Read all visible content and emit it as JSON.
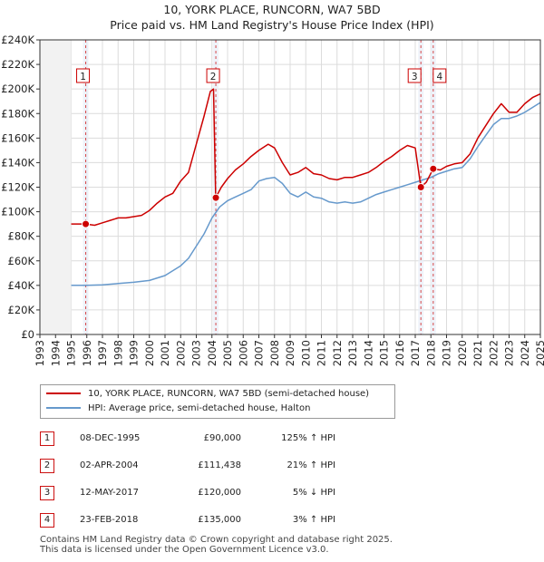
{
  "chart_data": {
    "type": "line",
    "title": "10, YORK PLACE, RUNCORN, WA7 5BD",
    "subtitle": "Price paid vs. HM Land Registry's House Price Index (HPI)",
    "xlim": [
      1993,
      2025
    ],
    "ylim": [
      0,
      240000
    ],
    "x_ticks": [
      "1993",
      "1994",
      "1995",
      "1996",
      "1997",
      "1998",
      "1999",
      "2000",
      "2001",
      "2002",
      "2003",
      "2004",
      "2005",
      "2006",
      "2007",
      "2008",
      "2009",
      "2010",
      "2011",
      "2012",
      "2013",
      "2014",
      "2015",
      "2016",
      "2017",
      "2018",
      "2019",
      "2020",
      "2021",
      "2022",
      "2023",
      "2024",
      "2025"
    ],
    "y_ticks": [
      {
        "value": 0,
        "label": "£0"
      },
      {
        "value": 20000,
        "label": "£20K"
      },
      {
        "value": 40000,
        "label": "£40K"
      },
      {
        "value": 60000,
        "label": "£60K"
      },
      {
        "value": 80000,
        "label": "£80K"
      },
      {
        "value": 100000,
        "label": "£100K"
      },
      {
        "value": 120000,
        "label": "£120K"
      },
      {
        "value": 140000,
        "label": "£140K"
      },
      {
        "value": 160000,
        "label": "£160K"
      },
      {
        "value": 180000,
        "label": "£180K"
      },
      {
        "value": 200000,
        "label": "£200K"
      },
      {
        "value": 220000,
        "label": "£220K"
      },
      {
        "value": 240000,
        "label": "£240K"
      }
    ],
    "grid": true,
    "data_start_year": 1995,
    "series": [
      {
        "name": "10, YORK PLACE, RUNCORN, WA7 5BD (semi-detached house)",
        "color": "#cc0000",
        "points": [
          [
            1995,
            90000
          ],
          [
            1995.9,
            90000
          ],
          [
            1996.5,
            89000
          ],
          [
            1997,
            91000
          ],
          [
            1997.5,
            93000
          ],
          [
            1998,
            95000
          ],
          [
            1998.5,
            95000
          ],
          [
            1999,
            96000
          ],
          [
            1999.5,
            97000
          ],
          [
            2000,
            101000
          ],
          [
            2000.5,
            107000
          ],
          [
            2001,
            112000
          ],
          [
            2001.5,
            115000
          ],
          [
            2002,
            125000
          ],
          [
            2002.5,
            132000
          ],
          [
            2003,
            155000
          ],
          [
            2003.5,
            178000
          ],
          [
            2003.9,
            198000
          ],
          [
            2004.1,
            200000
          ],
          [
            2004.24,
            111438
          ],
          [
            2004.6,
            120000
          ],
          [
            2005,
            127000
          ],
          [
            2005.5,
            134000
          ],
          [
            2006,
            139000
          ],
          [
            2006.5,
            145000
          ],
          [
            2007,
            150000
          ],
          [
            2007.6,
            155000
          ],
          [
            2008,
            152000
          ],
          [
            2008.5,
            140000
          ],
          [
            2009,
            130000
          ],
          [
            2009.5,
            132000
          ],
          [
            2010,
            136000
          ],
          [
            2010.5,
            131000
          ],
          [
            2011,
            130000
          ],
          [
            2011.5,
            127000
          ],
          [
            2012,
            126000
          ],
          [
            2012.5,
            128000
          ],
          [
            2013,
            128000
          ],
          [
            2013.5,
            130000
          ],
          [
            2014,
            132000
          ],
          [
            2014.5,
            136000
          ],
          [
            2015,
            141000
          ],
          [
            2015.5,
            145000
          ],
          [
            2016,
            150000
          ],
          [
            2016.5,
            154000
          ],
          [
            2017,
            152000
          ],
          [
            2017.36,
            120000
          ],
          [
            2017.7,
            124000
          ],
          [
            2018.15,
            135000
          ],
          [
            2018.6,
            134000
          ],
          [
            2019,
            137000
          ],
          [
            2019.5,
            139000
          ],
          [
            2020,
            140000
          ],
          [
            2020.5,
            147000
          ],
          [
            2021,
            160000
          ],
          [
            2021.5,
            170000
          ],
          [
            2022,
            180000
          ],
          [
            2022.5,
            188000
          ],
          [
            2023,
            181000
          ],
          [
            2023.5,
            181000
          ],
          [
            2024,
            188000
          ],
          [
            2024.5,
            193000
          ],
          [
            2025,
            196000
          ]
        ]
      },
      {
        "name": "HPI: Average price, semi-detached house, Halton",
        "color": "#6699cc",
        "points": [
          [
            1995,
            40000
          ],
          [
            1996,
            40000
          ],
          [
            1997,
            40500
          ],
          [
            1998,
            41500
          ],
          [
            1999,
            42500
          ],
          [
            2000,
            44000
          ],
          [
            2001,
            48000
          ],
          [
            2002,
            56000
          ],
          [
            2002.5,
            62000
          ],
          [
            2003,
            72000
          ],
          [
            2003.5,
            82000
          ],
          [
            2004,
            95000
          ],
          [
            2004.5,
            104000
          ],
          [
            2005,
            109000
          ],
          [
            2005.5,
            112000
          ],
          [
            2006,
            115000
          ],
          [
            2006.5,
            118000
          ],
          [
            2007,
            125000
          ],
          [
            2007.5,
            127000
          ],
          [
            2008,
            128000
          ],
          [
            2008.5,
            123000
          ],
          [
            2009,
            115000
          ],
          [
            2009.5,
            112000
          ],
          [
            2010,
            116000
          ],
          [
            2010.5,
            112000
          ],
          [
            2011,
            111000
          ],
          [
            2011.5,
            108000
          ],
          [
            2012,
            107000
          ],
          [
            2012.5,
            108000
          ],
          [
            2013,
            107000
          ],
          [
            2013.5,
            108000
          ],
          [
            2014,
            111000
          ],
          [
            2014.5,
            114000
          ],
          [
            2015,
            116000
          ],
          [
            2015.5,
            118000
          ],
          [
            2016,
            120000
          ],
          [
            2016.5,
            122000
          ],
          [
            2017,
            124000
          ],
          [
            2017.5,
            126000
          ],
          [
            2018,
            128000
          ],
          [
            2018.5,
            131000
          ],
          [
            2019,
            133000
          ],
          [
            2019.5,
            135000
          ],
          [
            2020,
            136000
          ],
          [
            2020.5,
            143000
          ],
          [
            2021,
            153000
          ],
          [
            2021.5,
            162000
          ],
          [
            2022,
            171000
          ],
          [
            2022.5,
            176000
          ],
          [
            2023,
            176000
          ],
          [
            2023.5,
            178000
          ],
          [
            2024,
            181000
          ],
          [
            2024.5,
            185000
          ],
          [
            2025,
            189000
          ]
        ]
      }
    ],
    "sales": [
      {
        "label": "1",
        "x": 1995.93,
        "price": 90000
      },
      {
        "label": "2",
        "x": 2004.25,
        "price": 111438
      },
      {
        "label": "3",
        "x": 2017.36,
        "price": 120000
      },
      {
        "label": "4",
        "x": 2018.15,
        "price": 135000
      }
    ]
  },
  "legend": {
    "property_label": "10, YORK PLACE, RUNCORN, WA7 5BD (semi-detached house)",
    "hpi_label": "HPI: Average price, semi-detached house, Halton",
    "property_color": "#cc0000",
    "hpi_color": "#6699cc"
  },
  "transactions": [
    {
      "num": "1",
      "date": "08-DEC-1995",
      "price": "£90,000",
      "hpi": "125% ↑ HPI"
    },
    {
      "num": "2",
      "date": "02-APR-2004",
      "price": "£111,438",
      "hpi": "21% ↑ HPI"
    },
    {
      "num": "3",
      "date": "12-MAY-2017",
      "price": "£120,000",
      "hpi": "5% ↓ HPI"
    },
    {
      "num": "4",
      "date": "23-FEB-2018",
      "price": "£135,000",
      "hpi": "3% ↑ HPI"
    }
  ],
  "footer": {
    "line1": "Contains HM Land Registry data © Crown copyright and database right 2025.",
    "line2": "This data is licensed under the Open Government Licence v3.0."
  }
}
